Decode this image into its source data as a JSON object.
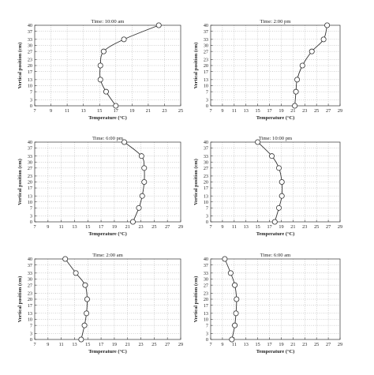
{
  "chart_data": [
    {
      "type": "line",
      "title": "Time: 10:00 am",
      "xlabel": "Temperature (°C)",
      "ylabel": "Vertical position (cm)",
      "xlim": [
        7,
        25
      ],
      "ylim": [
        0,
        40
      ],
      "xticks": [
        7,
        9,
        11,
        13,
        15,
        17,
        19,
        21,
        23,
        25
      ],
      "yticks": [
        0,
        3,
        7,
        10,
        13,
        17,
        20,
        23,
        27,
        30,
        33,
        37,
        40
      ],
      "grid": true,
      "series": [
        {
          "x": [
            17.0,
            15.8,
            15.1,
            15.1,
            15.5,
            18.0,
            22.3
          ],
          "y": [
            0,
            7,
            13,
            20,
            27,
            33,
            40
          ]
        }
      ]
    },
    {
      "type": "line",
      "title": "Time: 2:00 pm",
      "xlabel": "Temperature (°C)",
      "ylabel": "Vertical position (cm)",
      "xlim": [
        7,
        29
      ],
      "ylim": [
        0,
        40
      ],
      "xticks": [
        7,
        9,
        11,
        13,
        15,
        17,
        19,
        21,
        23,
        25,
        27,
        29
      ],
      "yticks": [
        0,
        3,
        7,
        10,
        13,
        17,
        20,
        23,
        27,
        30,
        33,
        37,
        40
      ],
      "grid": true,
      "series": [
        {
          "x": [
            21.3,
            21.5,
            21.7,
            22.6,
            24.2,
            26.2,
            26.8
          ],
          "y": [
            0,
            7,
            13,
            20,
            27,
            33,
            40
          ]
        }
      ]
    },
    {
      "type": "line",
      "title": "Time: 6:00 pm",
      "xlabel": "Temperature (°C)",
      "ylabel": "Vertical position (cm)",
      "xlim": [
        7,
        29
      ],
      "ylim": [
        0,
        40
      ],
      "xticks": [
        7,
        9,
        11,
        13,
        15,
        17,
        19,
        21,
        23,
        25,
        27,
        29
      ],
      "yticks": [
        0,
        3,
        7,
        10,
        13,
        17,
        20,
        23,
        27,
        30,
        33,
        37,
        40
      ],
      "grid": true,
      "series": [
        {
          "x": [
            21.8,
            22.7,
            23.2,
            23.5,
            23.5,
            23.1,
            20.5
          ],
          "y": [
            0,
            7,
            13,
            20,
            27,
            33,
            40
          ]
        }
      ]
    },
    {
      "type": "line",
      "title": "Time: 10:00 pm",
      "xlabel": "Temperature (°C)",
      "ylabel": "Vertical position (cm)",
      "xlim": [
        7,
        29
      ],
      "ylim": [
        0,
        40
      ],
      "xticks": [
        7,
        9,
        11,
        13,
        15,
        17,
        19,
        21,
        23,
        25,
        27,
        29
      ],
      "yticks": [
        0,
        3,
        7,
        10,
        13,
        17,
        20,
        23,
        27,
        30,
        33,
        37,
        40
      ],
      "grid": true,
      "series": [
        {
          "x": [
            17.9,
            18.6,
            19.1,
            19.1,
            18.6,
            17.4,
            15.0
          ],
          "y": [
            0,
            7,
            13,
            20,
            27,
            33,
            40
          ]
        }
      ]
    },
    {
      "type": "line",
      "title": "Time: 2:00 am",
      "xlabel": "Temperature (°C)",
      "ylabel": "Vertical position (cm)",
      "xlim": [
        7,
        29
      ],
      "ylim": [
        0,
        40
      ],
      "xticks": [
        7,
        9,
        11,
        13,
        15,
        17,
        19,
        21,
        23,
        25,
        27,
        29
      ],
      "yticks": [
        0,
        3,
        7,
        10,
        13,
        17,
        20,
        23,
        27,
        30,
        33,
        37,
        40
      ],
      "grid": true,
      "series": [
        {
          "x": [
            14.0,
            14.5,
            14.8,
            14.9,
            14.6,
            13.2,
            11.6
          ],
          "y": [
            0,
            7,
            13,
            20,
            27,
            33,
            40
          ]
        }
      ]
    },
    {
      "type": "line",
      "title": "Time: 6:00 am",
      "xlabel": "Temperature (°C)",
      "ylabel": "Vertical position (cm)",
      "xlim": [
        7,
        29
      ],
      "ylim": [
        0,
        40
      ],
      "xticks": [
        7,
        9,
        11,
        13,
        15,
        17,
        19,
        21,
        23,
        25,
        27,
        29
      ],
      "yticks": [
        0,
        3,
        7,
        10,
        13,
        17,
        20,
        23,
        27,
        30,
        33,
        37,
        40
      ],
      "grid": true,
      "series": [
        {
          "x": [
            10.6,
            11.1,
            11.3,
            11.4,
            11.1,
            10.4,
            9.4
          ],
          "y": [
            0,
            7,
            13,
            20,
            27,
            33,
            40
          ]
        }
      ]
    }
  ]
}
